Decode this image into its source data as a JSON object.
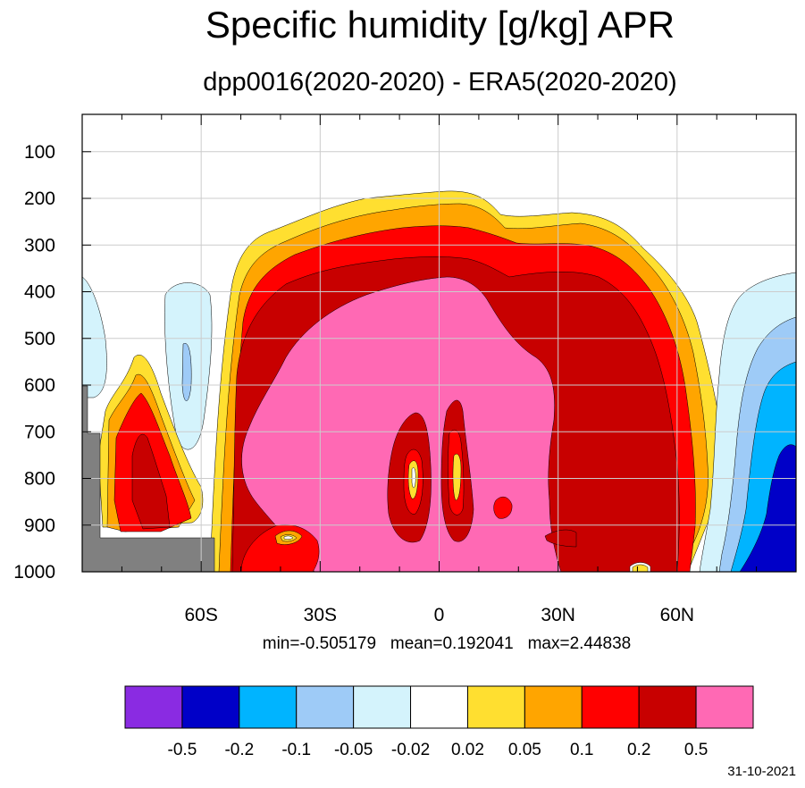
{
  "chart_data": {
    "type": "contour",
    "title": "Specific humidity [g/kg] APR",
    "subtitle": "dpp0016(2020-2020) - ERA5(2020-2020)",
    "x_ticks": [
      "60S",
      "30S",
      "0",
      "30N",
      "60N"
    ],
    "x_values": [
      -60,
      -30,
      0,
      30,
      60
    ],
    "xlim": [
      -90,
      90
    ],
    "y_ticks": [
      "100",
      "200",
      "300",
      "400",
      "500",
      "600",
      "700",
      "800",
      "900",
      "1000"
    ],
    "y_values": [
      100,
      200,
      300,
      400,
      500,
      600,
      700,
      800,
      900,
      1000
    ],
    "ylim": [
      1000,
      20
    ],
    "stats": {
      "min": "-0.505179",
      "mean": "0.192041",
      "max": "2.44838"
    },
    "stats_text": "min=-0.505179   mean=0.192041   max=2.44838",
    "colorbar": {
      "levels": [
        "-0.5",
        "-0.2",
        "-0.1",
        "-0.05",
        "-0.02",
        "0.02",
        "0.05",
        "0.1",
        "0.2",
        "0.5"
      ],
      "colors": [
        "#8a2be2",
        "#0000c8",
        "#00b4ff",
        "#9ecbf7",
        "#d4f3fc",
        "#ffffff",
        "#ffdf30",
        "#ffa500",
        "#ff0000",
        "#c80000",
        "#ff69b4"
      ]
    },
    "grid": true
  },
  "date": "31-10-2021"
}
